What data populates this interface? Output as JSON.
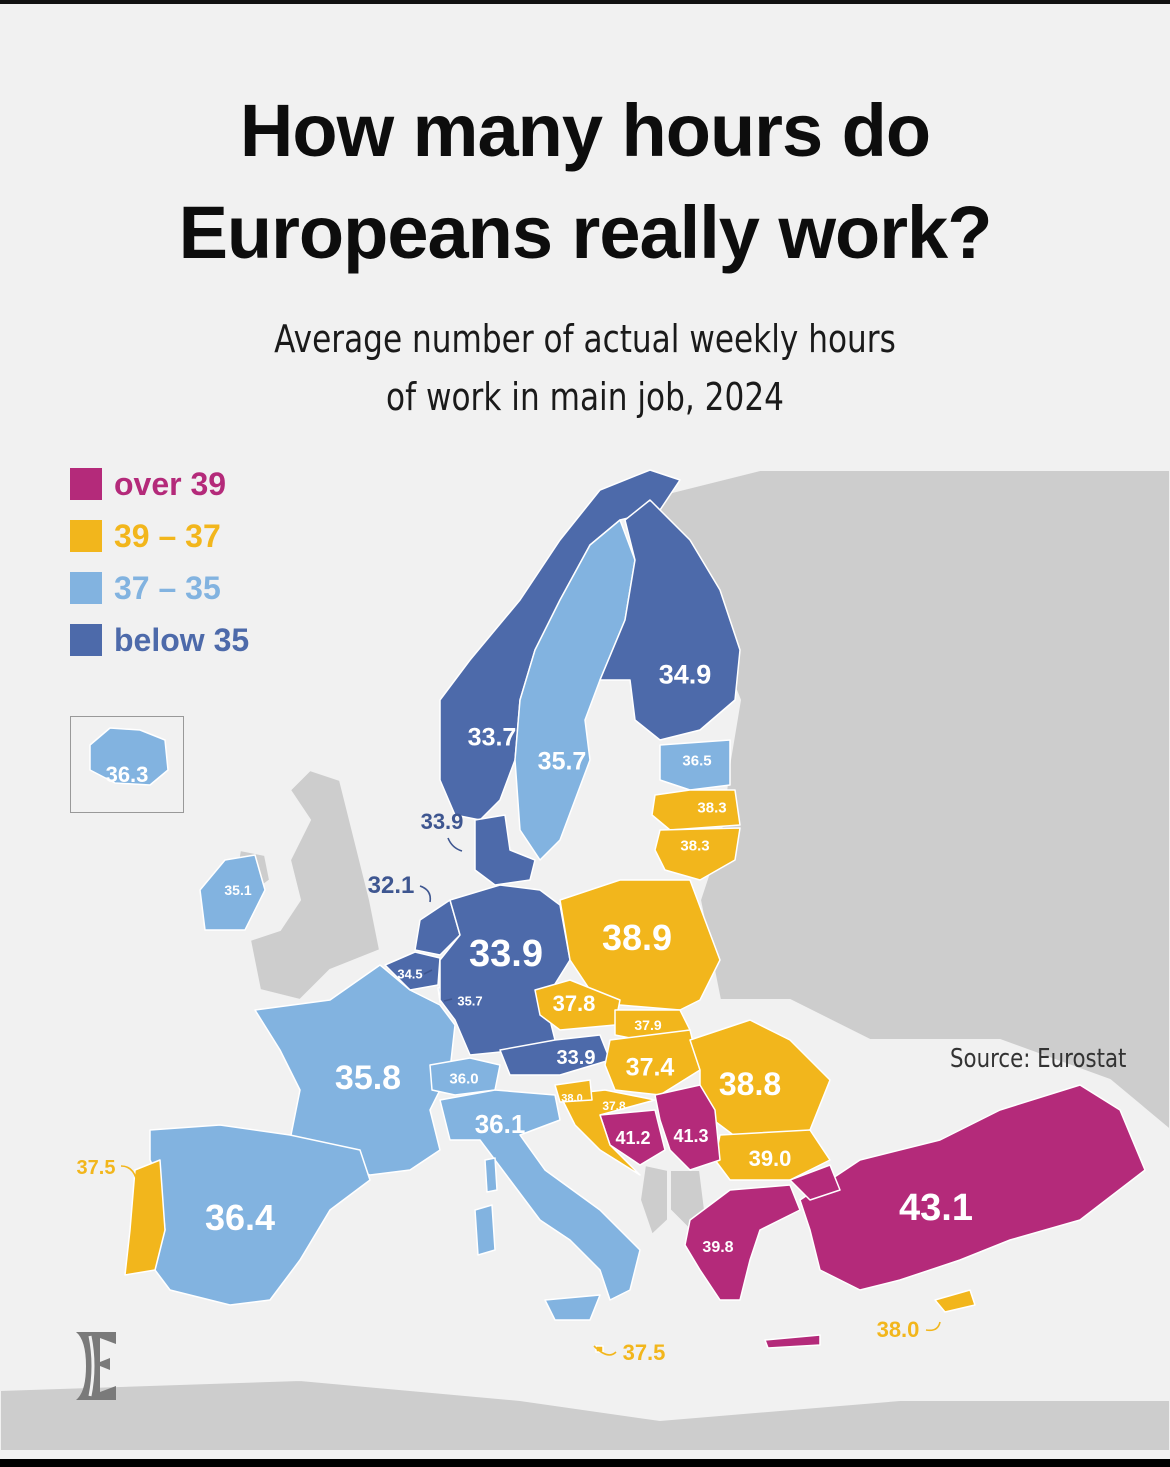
{
  "title": {
    "line1": "How many hours do",
    "line2": "Europeans really work?"
  },
  "subtitle": {
    "line1": "Average number of actual weekly hours",
    "line2": "of work in main job, 2024"
  },
  "legend": [
    {
      "label": "over 39",
      "color": "#b42a7a"
    },
    {
      "label": "39 – 37",
      "color": "#f2b61c"
    },
    {
      "label": "37 – 35",
      "color": "#82b3e0"
    },
    {
      "label": "below 35",
      "color": "#4d6aaa"
    }
  ],
  "colors": {
    "nodata": "#cdcdcd",
    "sea": "#f1f1f1",
    "labelDark": "#3e5690"
  },
  "countries": [
    {
      "name": "Iceland",
      "value": "36.3",
      "tier": "light"
    },
    {
      "name": "Norway",
      "value": "33.7",
      "tier": "dark"
    },
    {
      "name": "Sweden",
      "value": "35.7",
      "tier": "light"
    },
    {
      "name": "Finland",
      "value": "34.9",
      "tier": "dark"
    },
    {
      "name": "Estonia",
      "value": "36.5",
      "tier": "light"
    },
    {
      "name": "Latvia",
      "value": "38.3",
      "tier": "yellow"
    },
    {
      "name": "Lithuania",
      "value": "38.3",
      "tier": "yellow"
    },
    {
      "name": "Denmark",
      "value": "33.9",
      "tier": "dark"
    },
    {
      "name": "Ireland",
      "value": "35.1",
      "tier": "light"
    },
    {
      "name": "Netherlands",
      "value": "32.1",
      "tier": "dark"
    },
    {
      "name": "Belgium",
      "value": "34.5",
      "tier": "dark"
    },
    {
      "name": "Luxembourg",
      "value": "35.7",
      "tier": "light"
    },
    {
      "name": "Germany",
      "value": "33.9",
      "tier": "dark"
    },
    {
      "name": "Poland",
      "value": "38.9",
      "tier": "yellow"
    },
    {
      "name": "Czechia",
      "value": "37.8",
      "tier": "yellow"
    },
    {
      "name": "Slovakia",
      "value": "37.9",
      "tier": "yellow"
    },
    {
      "name": "Austria",
      "value": "33.9",
      "tier": "dark"
    },
    {
      "name": "Hungary",
      "value": "37.4",
      "tier": "yellow"
    },
    {
      "name": "Romania",
      "value": "38.8",
      "tier": "yellow"
    },
    {
      "name": "France",
      "value": "35.8",
      "tier": "light"
    },
    {
      "name": "Switzerland",
      "value": "36.0",
      "tier": "light"
    },
    {
      "name": "Slovenia",
      "value": "38.0",
      "tier": "yellow"
    },
    {
      "name": "Croatia",
      "value": "37.8",
      "tier": "yellow"
    },
    {
      "name": "Bosnia and Herzegovina",
      "value": "41.2",
      "tier": "magenta"
    },
    {
      "name": "Serbia",
      "value": "41.3",
      "tier": "magenta"
    },
    {
      "name": "Italy",
      "value": "36.1",
      "tier": "light"
    },
    {
      "name": "Bulgaria",
      "value": "39.0",
      "tier": "yellow"
    },
    {
      "name": "Portugal",
      "value": "37.5",
      "tier": "yellow"
    },
    {
      "name": "Spain",
      "value": "36.4",
      "tier": "light"
    },
    {
      "name": "Greece",
      "value": "39.8",
      "tier": "magenta"
    },
    {
      "name": "Türkiye",
      "value": "43.1",
      "tier": "magenta"
    },
    {
      "name": "Malta",
      "value": "37.5",
      "tier": "yellow"
    },
    {
      "name": "Cyprus",
      "value": "38.0",
      "tier": "yellow"
    }
  ],
  "logo": "E",
  "source": "Source: Eurostat"
}
